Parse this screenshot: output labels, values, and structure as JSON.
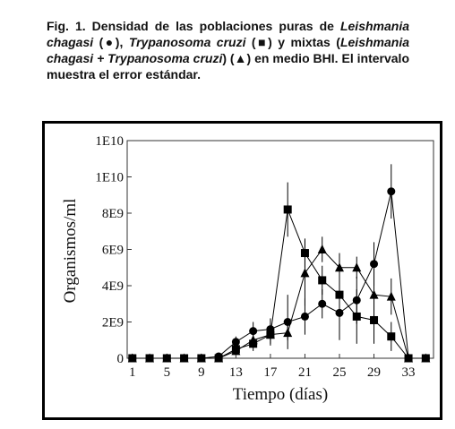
{
  "caption": [
    "Fig. 1. Densidad de las poblaciones puras de ",
    "Leishmania chagasi",
    " (●), ",
    "Trypanosoma cruzi",
    " (■) y mixtas (",
    "Leishmania chagasi + Trypanosoma cruzi",
    ") (▲) en medio BHI. El intervalo muestra el error estándar."
  ],
  "chart_data": {
    "type": "scatter",
    "line": true,
    "xlabel": "Tiempo (días)",
    "ylabel": "Organismos/ml",
    "x": [
      1,
      3,
      5,
      7,
      9,
      11,
      13,
      15,
      17,
      19,
      21,
      23,
      25,
      27,
      29,
      31,
      33,
      35
    ],
    "series": [
      {
        "marker": "circle",
        "color": "#000000",
        "values": [
          0,
          0,
          0,
          0,
          0,
          100000000.0,
          900000000.0,
          1500000000.0,
          1600000000.0,
          2000000000.0,
          2300000000.0,
          3000000000.0,
          2500000000.0,
          3200000000.0,
          5200000000.0,
          9200000000.0,
          0,
          0
        ],
        "errors": [
          0,
          0,
          0,
          0,
          0,
          0,
          300000000.0,
          500000000.0,
          600000000.0,
          1500000000.0,
          1000000000.0,
          800000000.0,
          1500000000.0,
          1300000000.0,
          1200000000.0,
          1500000000.0,
          0,
          0
        ]
      },
      {
        "marker": "square",
        "color": "#000000",
        "values": [
          0,
          0,
          0,
          0,
          0,
          0,
          500000000.0,
          800000000.0,
          1300000000.0,
          8200000000.0,
          5800000000.0,
          4300000000.0,
          3500000000.0,
          2300000000.0,
          2100000000.0,
          1200000000.0,
          0,
          0
        ],
        "errors": [
          0,
          0,
          0,
          0,
          0,
          0,
          300000000.0,
          400000000.0,
          600000000.0,
          1500000000.0,
          800000000.0,
          800000000.0,
          1300000000.0,
          1500000000.0,
          1300000000.0,
          800000000.0,
          0,
          0
        ]
      },
      {
        "marker": "triangle",
        "color": "#000000",
        "values": [
          0,
          0,
          0,
          0,
          0,
          0,
          400000000.0,
          1000000000.0,
          1300000000.0,
          1400000000.0,
          4700000000.0,
          6000000000.0,
          5000000000.0,
          5000000000.0,
          3500000000.0,
          3400000000.0,
          0,
          0
        ],
        "errors": [
          0,
          0,
          0,
          0,
          0,
          0,
          200000000.0,
          300000000.0,
          500000000.0,
          400000000.0,
          1800000000.0,
          700000000.0,
          800000000.0,
          600000000.0,
          1500000000.0,
          1000000000.0,
          0,
          0
        ]
      }
    ],
    "xlim": [
      0.4,
      35.9
    ],
    "xticks": [
      1,
      5,
      9,
      13,
      17,
      21,
      25,
      29,
      33
    ],
    "ylim": [
      0,
      12000000000.0
    ],
    "yticks": [
      0,
      {
        "value": 2000000000.0,
        "label": "2E9"
      },
      {
        "value": 4000000000.0,
        "label": "4E9"
      },
      {
        "value": 6000000000.0,
        "label": "6E9"
      },
      {
        "value": 8000000000.0,
        "label": "8E9"
      },
      {
        "value": 10000000000.0,
        "label": "1E10"
      },
      {
        "value": 12000000000.0,
        "label": "1E10"
      }
    ]
  }
}
